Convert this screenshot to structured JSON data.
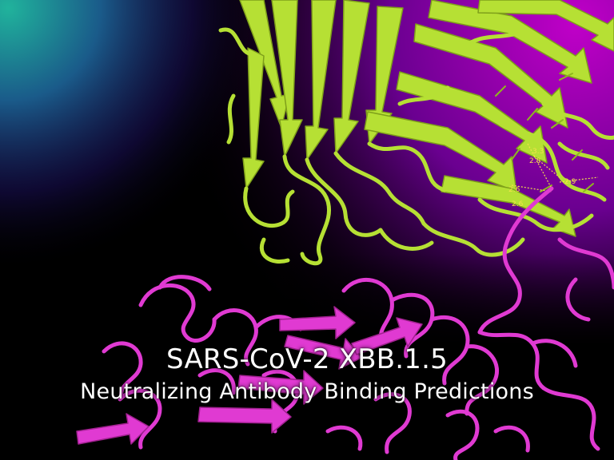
{
  "caption": {
    "title": "SARS-CoV-2 XBB.1.5",
    "subtitle": "Neutralizing Antibody Binding Predictions"
  },
  "colors": {
    "antibody": "#b6e034",
    "antibody_shade": "#8fb81e",
    "spike_protein": "#e03ad2",
    "background_top_left": "#1aa79a",
    "background_top_right": "#b000b8",
    "background_bottom": "#000000",
    "contact_labels": "#f2e24a"
  },
  "contact_labels": [
    "3.3",
    "2.8",
    "2.9",
    "2.6",
    "2.6"
  ]
}
